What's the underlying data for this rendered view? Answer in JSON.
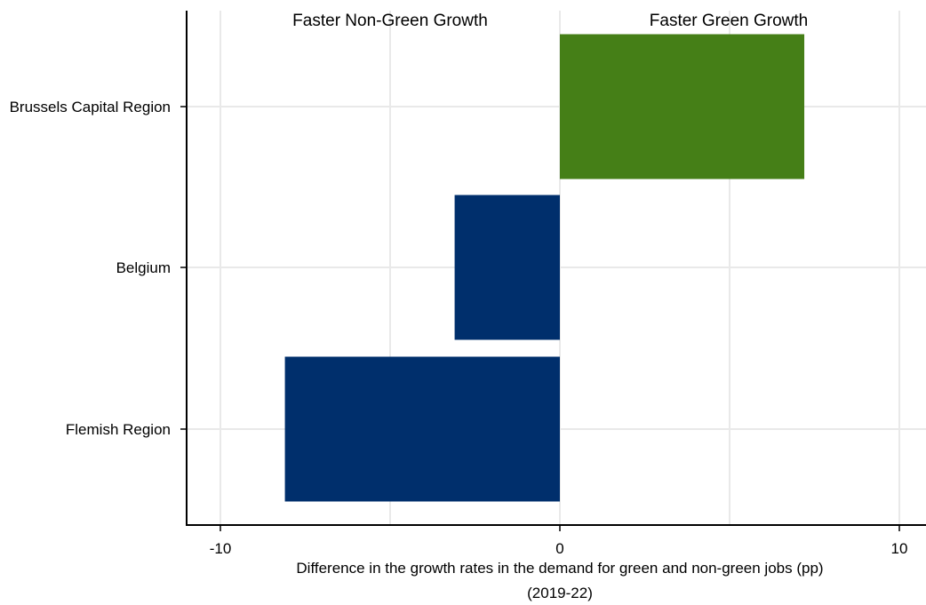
{
  "chart_data": {
    "type": "bar",
    "orientation": "horizontal",
    "categories": [
      "Brussels Capital Region",
      "Belgium",
      "Flemish Region"
    ],
    "values": [
      7.2,
      -3.1,
      -8.1
    ],
    "bar_colors": [
      "#457f17",
      "#002f6c",
      "#002f6c"
    ],
    "xlim": [
      -10.1,
      10.8
    ],
    "xticks": [
      -10,
      0,
      10
    ],
    "xtick_labels": [
      "-10",
      "0",
      "10"
    ],
    "minor_gridlines": [
      -5,
      5
    ],
    "xlabel": "Difference in the growth rates in the demand for green and non-green jobs (pp)",
    "xlabel_sub": "(2019-22)",
    "annotations": {
      "left": "Faster Non-Green Growth",
      "right": "Faster Green Growth"
    },
    "grid": true,
    "legend": "none"
  }
}
